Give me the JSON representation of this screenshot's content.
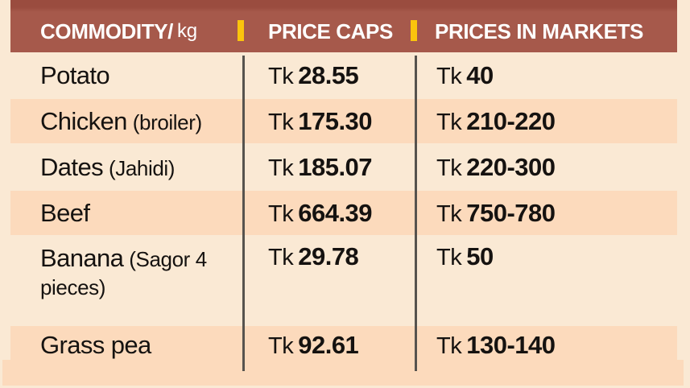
{
  "header": {
    "commodity": "COMMODITY/",
    "commodity_unit": "kg",
    "price_caps": "PRICE CAPS",
    "prices_in_markets": "PRICES IN MARKETS"
  },
  "currency": "Tk",
  "rows": [
    {
      "name": "Potato",
      "note": "",
      "cap": "28.55",
      "market": "40"
    },
    {
      "name": "Chicken",
      "note": "(broiler)",
      "cap": "175.30",
      "market": "210-220"
    },
    {
      "name": "Dates",
      "note": "(Jahidi)",
      "cap": "185.07",
      "market": "220-300"
    },
    {
      "name": "Beef",
      "note": "",
      "cap": "664.39",
      "market": "750-780"
    },
    {
      "name": "Banana",
      "note": "(Sagor 4 pieces)",
      "cap": "29.78",
      "market": "50"
    },
    {
      "name": "Grass pea",
      "note": "",
      "cap": "92.61",
      "market": "130-140"
    }
  ],
  "colors": {
    "header_bg": "#A6594B",
    "header_edge": "#9A4C3F",
    "header_text": "#FFFFFF",
    "background": "#FAE9D4",
    "row_shade": "#FCDABC",
    "separator_yellow": "#FBC40D",
    "divider_gray": "#56534E",
    "body_text": "#151210"
  },
  "chart_data": {
    "type": "table",
    "title": "Commodity price caps vs market prices (Tk per kg)",
    "columns": [
      "COMMODITY/ kg",
      "PRICE CAPS",
      "PRICES IN MARKETS"
    ],
    "rows": [
      [
        "Potato",
        "Tk 28.55",
        "Tk 40"
      ],
      [
        "Chicken (broiler)",
        "Tk 175.30",
        "Tk 210-220"
      ],
      [
        "Dates (Jahidi)",
        "Tk 185.07",
        "Tk 220-300"
      ],
      [
        "Beef",
        "Tk 664.39",
        "Tk 750-780"
      ],
      [
        "Banana (Sagor 4 pieces)",
        "Tk 29.78",
        "Tk 50"
      ],
      [
        "Grass pea",
        "Tk 92.61",
        "Tk 130-140"
      ]
    ],
    "layout": {
      "shaded_row_indices": [
        1,
        3,
        5
      ],
      "grid": "vertical column dividers only",
      "legend": "none"
    }
  }
}
